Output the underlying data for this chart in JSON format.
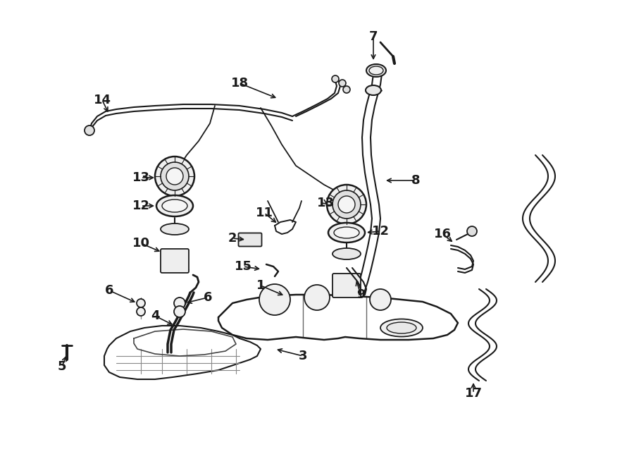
{
  "bg_color": "#ffffff",
  "line_color": "#1a1a1a",
  "fig_width": 9.0,
  "fig_height": 6.61,
  "dpi": 100,
  "xlim": [
    0,
    900
  ],
  "ylim": [
    0,
    661
  ]
}
